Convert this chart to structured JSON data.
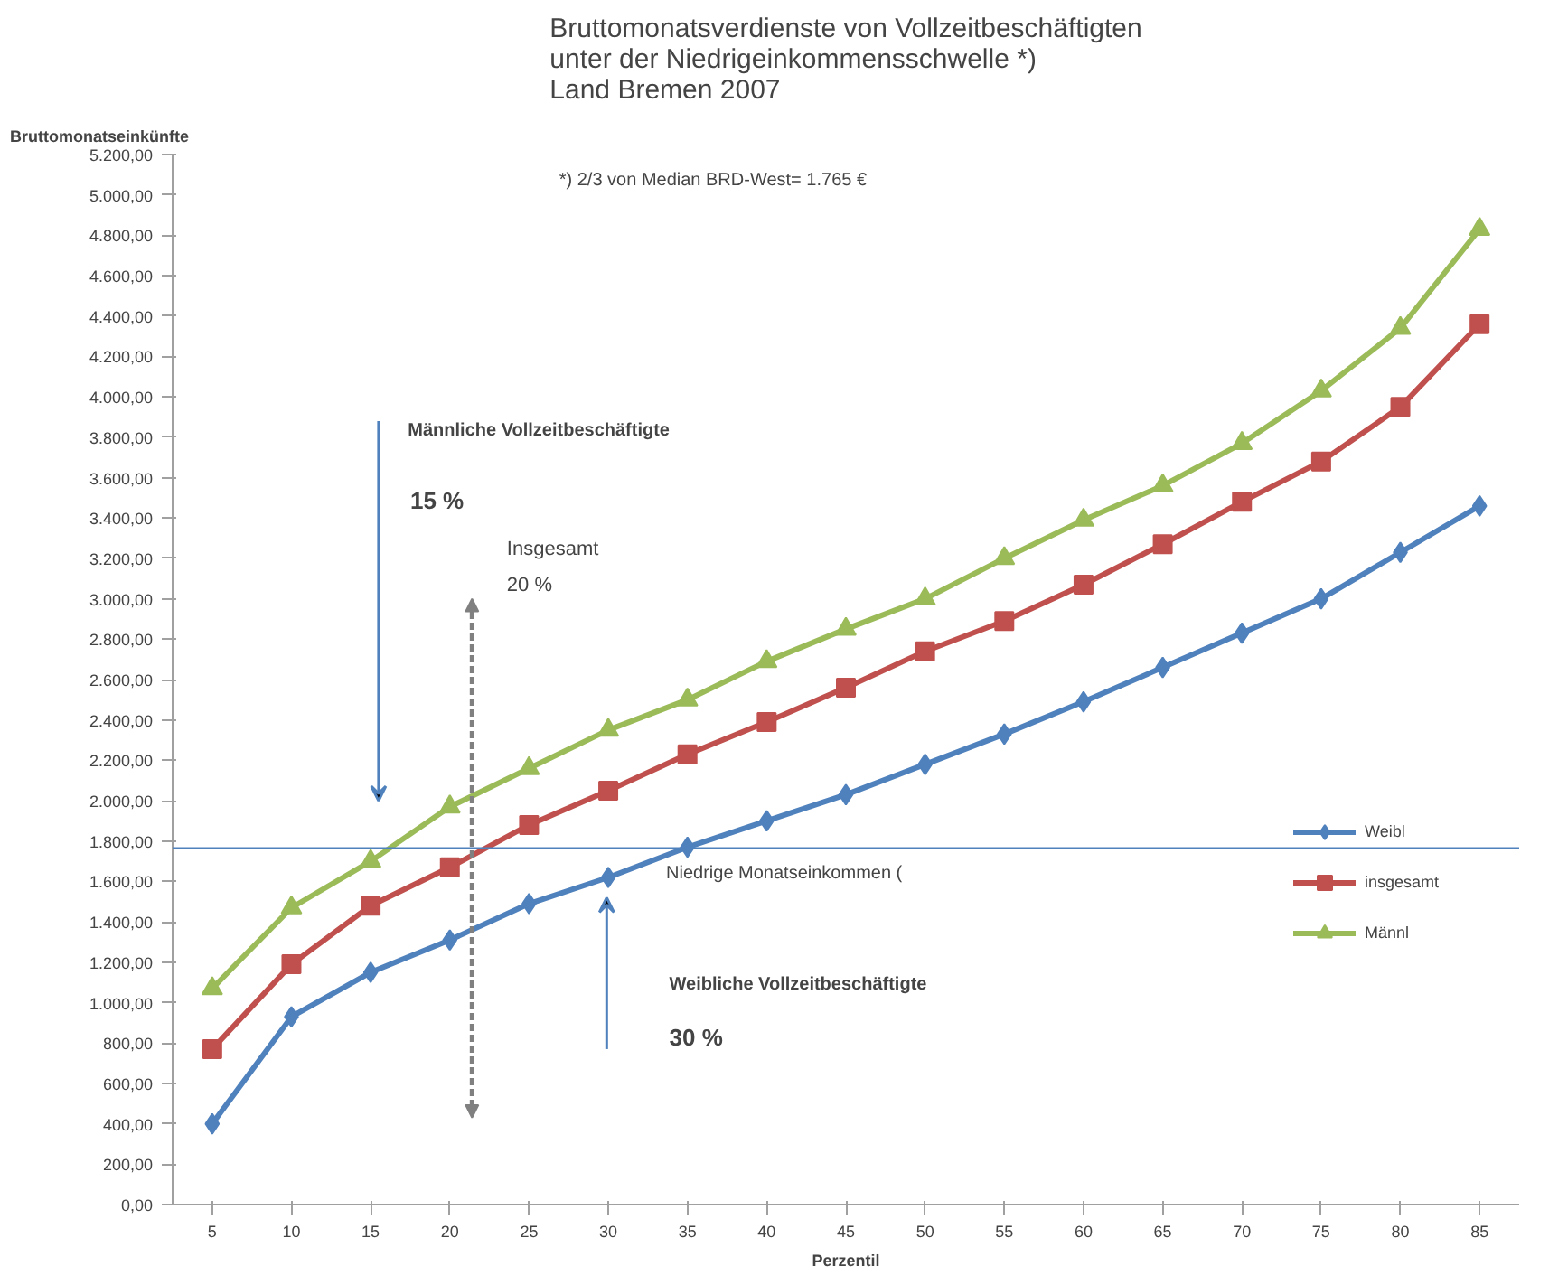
{
  "chart_data": {
    "type": "line",
    "title": "Bruttomonatsverdienste von Vollzeitbeschäftigten\nunter der Niedrigeinkommensschwelle *)\nLand Bremen  2007",
    "xlabel": "Perzentil",
    "ylabel": "Bruttomonatseinkünfte",
    "categories": [
      "5",
      "10",
      "15",
      "20",
      "25",
      "30",
      "35",
      "40",
      "45",
      "50",
      "55",
      "60",
      "65",
      "70",
      "75",
      "80",
      "85"
    ],
    "series": [
      {
        "name": "Weibl",
        "color": "#4f81bd",
        "marker": "diamond",
        "values": [
          400,
          930,
          1150,
          1310,
          1490,
          1620,
          1770,
          1900,
          2030,
          2180,
          2330,
          2490,
          2660,
          2830,
          3000,
          3230,
          3460
        ]
      },
      {
        "name": "insgesamt",
        "color": "#c0504d",
        "marker": "square",
        "values": [
          770,
          1190,
          1480,
          1670,
          1880,
          2050,
          2230,
          2390,
          2560,
          2740,
          2890,
          3070,
          3270,
          3480,
          3680,
          3950,
          4360
        ]
      },
      {
        "name": "Männl",
        "color": "#9bbb59",
        "marker": "triangle",
        "values": [
          1070,
          1470,
          1700,
          1970,
          2160,
          2350,
          2500,
          2690,
          2850,
          3000,
          3200,
          3390,
          3560,
          3770,
          4030,
          4340,
          4830
        ]
      }
    ],
    "ylim": [
      0,
      5200
    ],
    "yticks": [
      {
        "value": 0,
        "label": "0,00"
      },
      {
        "value": 200,
        "label": "200,00"
      },
      {
        "value": 400,
        "label": "400,00"
      },
      {
        "value": 600,
        "label": "600,00"
      },
      {
        "value": 800,
        "label": "800,00"
      },
      {
        "value": 1000,
        "label": "1.000,00"
      },
      {
        "value": 1200,
        "label": "1.200,00"
      },
      {
        "value": 1400,
        "label": "1.400,00"
      },
      {
        "value": 1600,
        "label": "1.600,00"
      },
      {
        "value": 1800,
        "label": "1.800,00"
      },
      {
        "value": 2000,
        "label": "2.000,00"
      },
      {
        "value": 2200,
        "label": "2.200,00"
      },
      {
        "value": 2400,
        "label": "2.400,00"
      },
      {
        "value": 2600,
        "label": "2.600,00"
      },
      {
        "value": 2800,
        "label": "2.800,00"
      },
      {
        "value": 3000,
        "label": "3.000,00"
      },
      {
        "value": 3200,
        "label": "3.200,00"
      },
      {
        "value": 3400,
        "label": "3.400,00"
      },
      {
        "value": 3600,
        "label": "3.600,00"
      },
      {
        "value": 3800,
        "label": "3.800,00"
      },
      {
        "value": 4000,
        "label": "4.000,00"
      },
      {
        "value": 4200,
        "label": "4.200,00"
      },
      {
        "value": 4400,
        "label": "4.400,00"
      },
      {
        "value": 4600,
        "label": "4.600,00"
      },
      {
        "value": 4800,
        "label": "4.800,00"
      },
      {
        "value": 5000,
        "label": "5.000,00"
      },
      {
        "value": 5200,
        "label": "5.200,00"
      }
    ],
    "ref_lines": [
      {
        "axis": "y",
        "value": 1765,
        "label": "Niedrige Monatseinkommen (",
        "color": "#4f81bd",
        "line_style": "solid"
      }
    ],
    "annotations": [
      "*) 2/3 von Median BRD-West= 1.765 €",
      "Männliche Vollzeitbeschäftigte",
      "15 %",
      "Insgesamt",
      "20 %",
      "Weibliche Vollzeitbeschäftigte",
      "30 %"
    ],
    "legend": "right",
    "grid": false,
    "line_style": "solid"
  }
}
